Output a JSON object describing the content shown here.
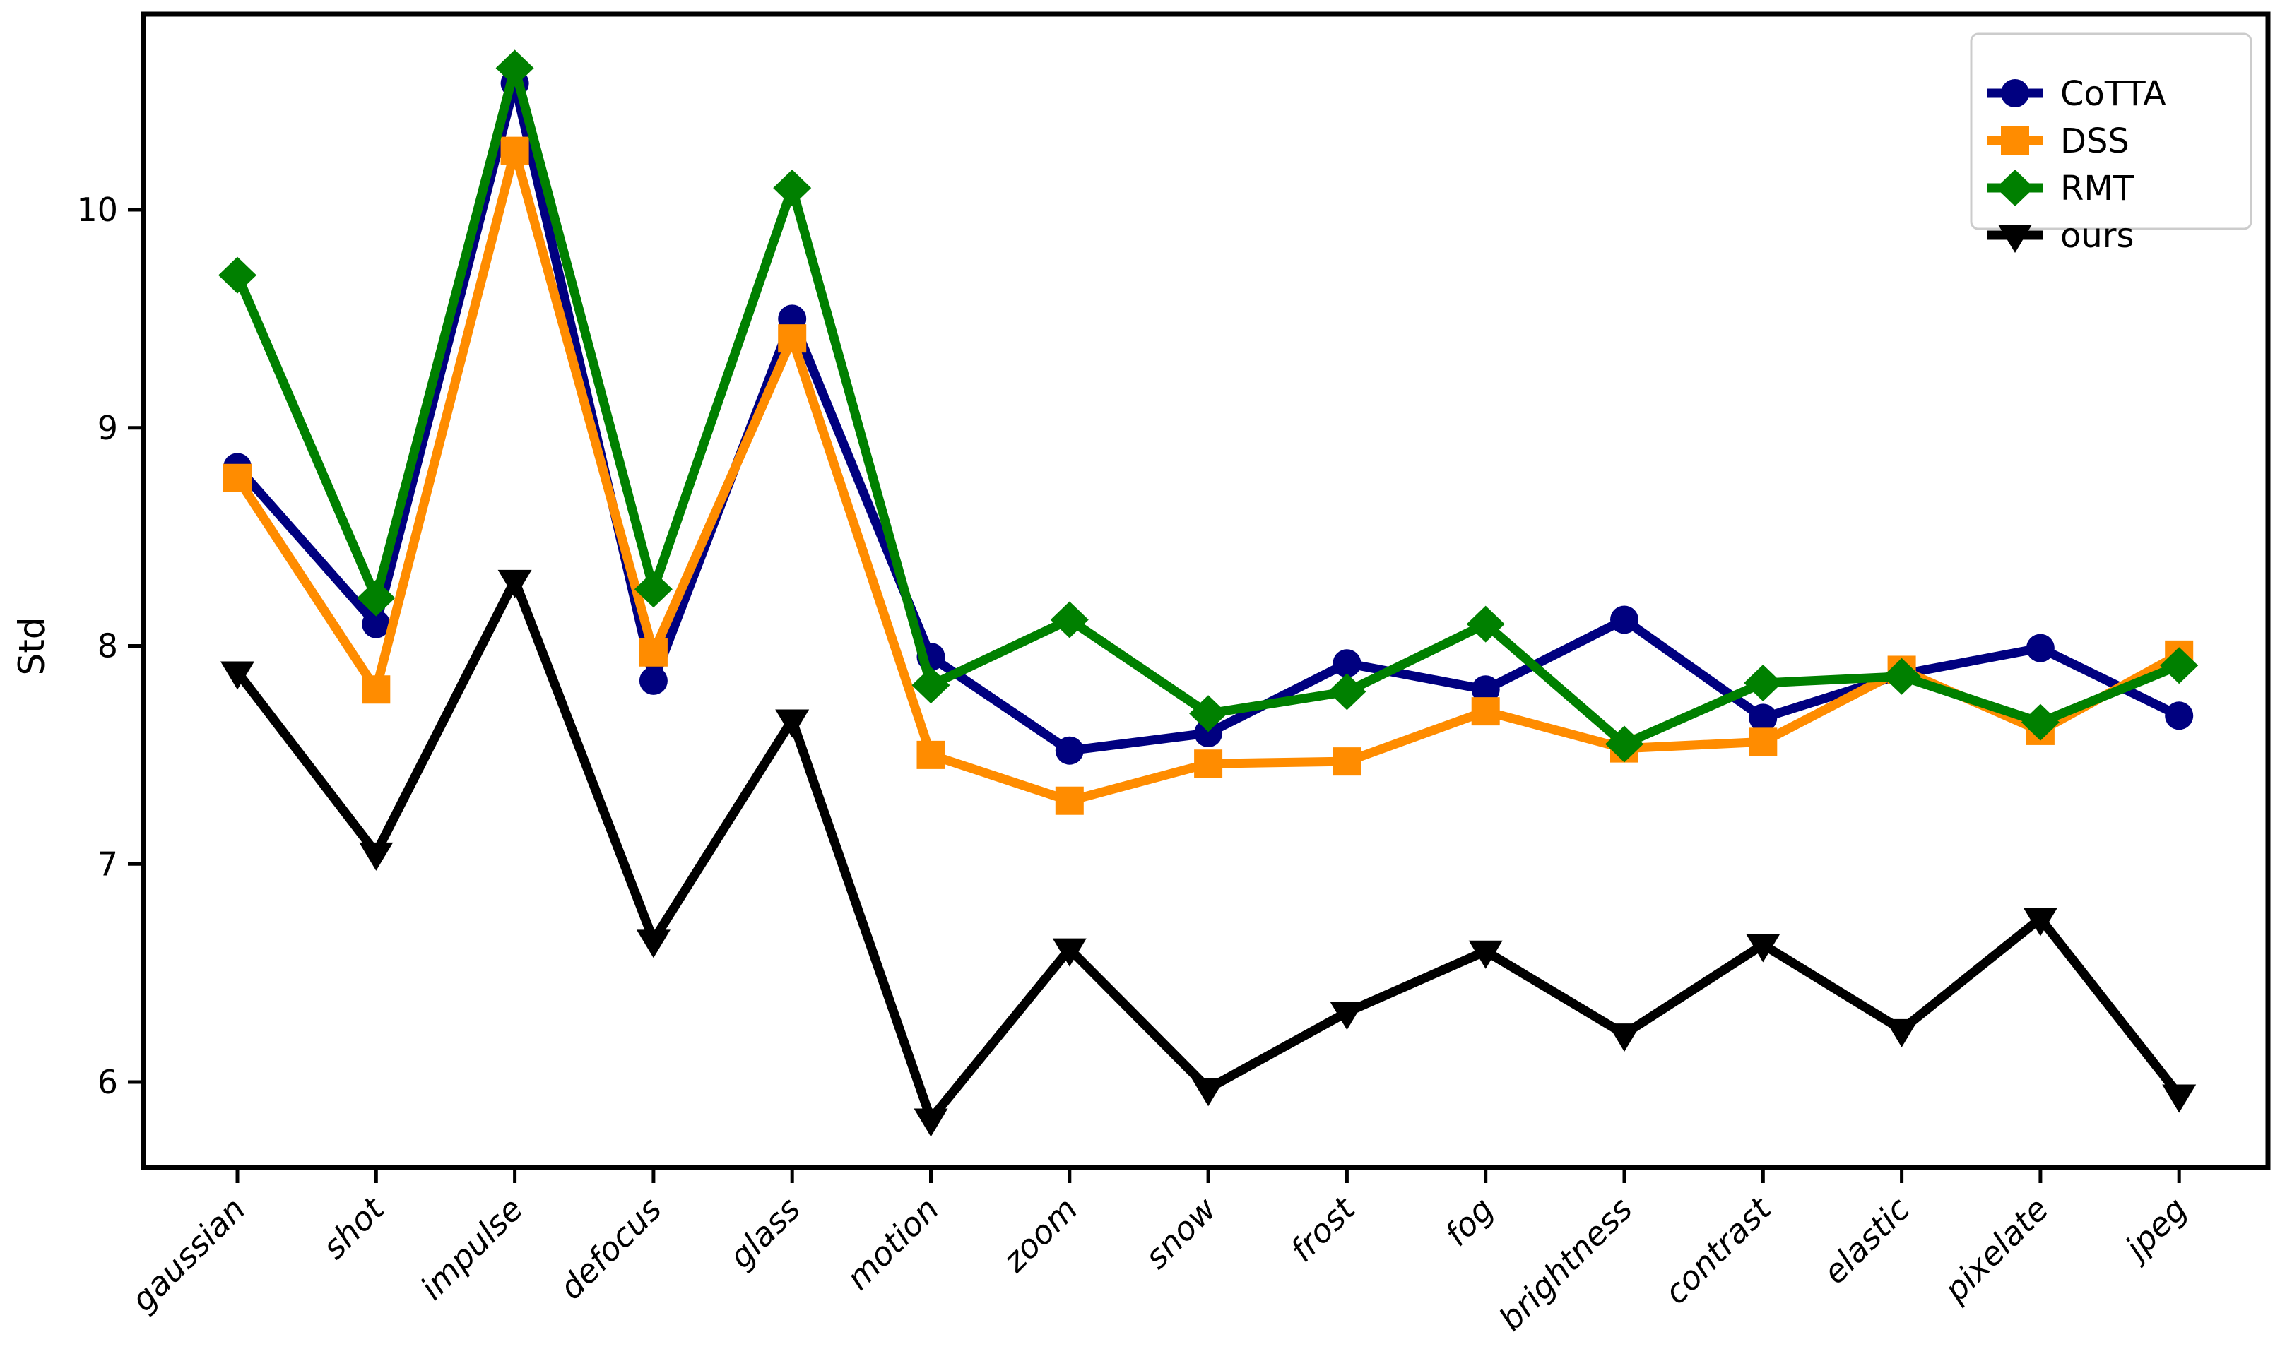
{
  "chart_data": {
    "type": "line",
    "title": "",
    "xlabel": "",
    "ylabel": "Std",
    "categories": [
      "gaussian",
      "shot",
      "impulse",
      "defocus",
      "glass",
      "motion",
      "zoom",
      "snow",
      "frost",
      "fog",
      "brightness",
      "contrast",
      "elastic",
      "pixelate",
      "jpeg"
    ],
    "y_ticks": [
      6,
      7,
      8,
      9,
      10
    ],
    "ylim": [
      5.6,
      10.9
    ],
    "grid": false,
    "legend_position": "upper-right",
    "axis_color": "#000000",
    "legend_border_color": "#cccccc",
    "background": "#ffffff",
    "series": [
      {
        "name": "CoTTA",
        "color": "#000080",
        "marker": "circle",
        "values": [
          8.82,
          8.1,
          10.58,
          7.84,
          9.5,
          7.95,
          7.52,
          7.6,
          7.92,
          7.8,
          8.12,
          7.67,
          7.87,
          7.99,
          7.68
        ]
      },
      {
        "name": "DSS",
        "color": "#ff8c00",
        "marker": "square",
        "values": [
          8.77,
          7.8,
          10.27,
          7.97,
          9.41,
          7.5,
          7.29,
          7.46,
          7.47,
          7.7,
          7.53,
          7.56,
          7.89,
          7.61,
          7.96
        ]
      },
      {
        "name": "RMT",
        "color": "#008000",
        "marker": "diamond",
        "values": [
          9.7,
          8.22,
          10.65,
          8.26,
          10.1,
          7.82,
          8.12,
          7.69,
          7.79,
          8.1,
          7.55,
          7.83,
          7.86,
          7.65,
          7.91
        ]
      },
      {
        "name": "ours",
        "color": "#000000",
        "marker": "triangle-down",
        "values": [
          7.88,
          7.05,
          8.3,
          6.65,
          7.66,
          5.83,
          6.61,
          5.97,
          6.32,
          6.6,
          6.22,
          6.63,
          6.24,
          6.75,
          5.94
        ]
      }
    ]
  }
}
